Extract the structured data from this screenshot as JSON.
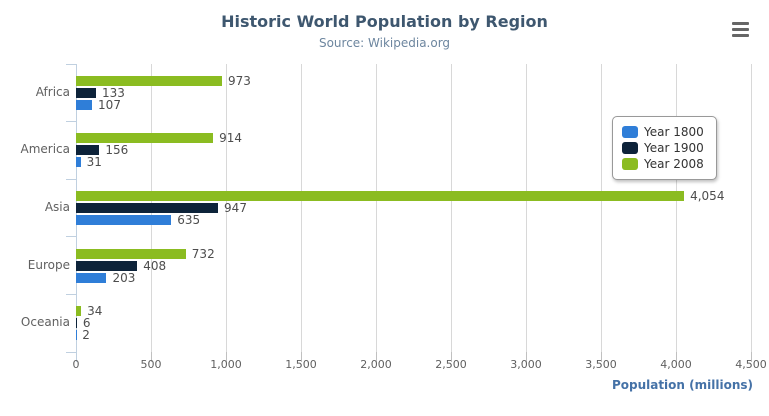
{
  "header": {
    "export_menu_icon": "hamburger-menu-icon"
  },
  "chart_data": {
    "type": "bar",
    "title": "Historic World Population by Region",
    "subtitle": "Source: Wikipedia.org",
    "categories": [
      "Africa",
      "America",
      "Asia",
      "Europe",
      "Oceania"
    ],
    "series": [
      {
        "name": "Year 1800",
        "color": "#2f7ed8",
        "values": [
          107,
          31,
          635,
          203,
          2
        ]
      },
      {
        "name": "Year 1900",
        "color": "#0d233a",
        "values": [
          133,
          156,
          947,
          408,
          6
        ]
      },
      {
        "name": "Year 2008",
        "color": "#8bbc21",
        "values": [
          973,
          914,
          4054,
          732,
          34
        ]
      }
    ],
    "xlabel": "Population (millions)",
    "ylabel": "",
    "ylim": [
      0,
      4500
    ],
    "tick_interval": 500,
    "grid": true,
    "legend_position": "right",
    "bar_order_top_to_bottom": [
      "Year 2008",
      "Year 1900",
      "Year 1800"
    ],
    "colors": {
      "title": "#3e576f",
      "subtitle": "#6d869f",
      "axis_title": "#4572a7",
      "axis_line": "#c0d0e0",
      "grid": "#d8d8d8",
      "tick": "#c0c0c0",
      "labels": "#606060",
      "data_label": "#4d4d4d",
      "legend_border": "#999999",
      "menu_icon": "#666666"
    }
  }
}
